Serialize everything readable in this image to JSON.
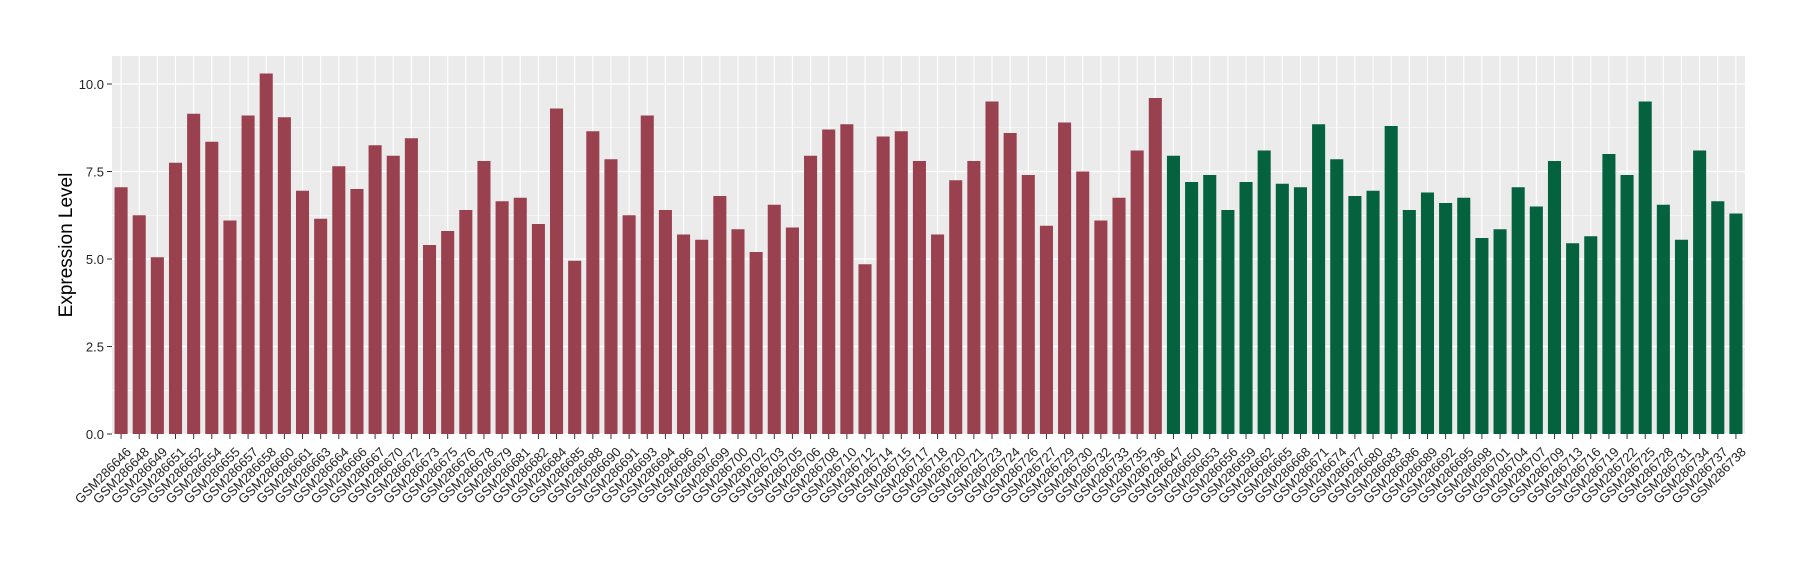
{
  "chart_data": {
    "type": "bar",
    "title": "",
    "xlabel": "",
    "ylabel": "Expression Level",
    "ylim": [
      0,
      10.8
    ],
    "yticks": [
      "0.0",
      "2.5",
      "5.0",
      "7.5",
      "10.0"
    ],
    "grid": true,
    "legend": "none",
    "colors": {
      "group_1": "#9A4150",
      "group_2": "#05623F",
      "panel": "#EBEBEB",
      "grid": "#FFFFFF"
    },
    "categories": [
      "GSM286646",
      "GSM286648",
      "GSM286649",
      "GSM286651",
      "GSM286652",
      "GSM286654",
      "GSM286655",
      "GSM286657",
      "GSM286658",
      "GSM286660",
      "GSM286661",
      "GSM286663",
      "GSM286664",
      "GSM286666",
      "GSM286667",
      "GSM286670",
      "GSM286672",
      "GSM286673",
      "GSM286675",
      "GSM286676",
      "GSM286678",
      "GSM286679",
      "GSM286681",
      "GSM286682",
      "GSM286684",
      "GSM286685",
      "GSM286688",
      "GSM286690",
      "GSM286691",
      "GSM286693",
      "GSM286694",
      "GSM286696",
      "GSM286697",
      "GSM286699",
      "GSM286700",
      "GSM286702",
      "GSM286703",
      "GSM286705",
      "GSM286706",
      "GSM286708",
      "GSM286710",
      "GSM286712",
      "GSM286714",
      "GSM286715",
      "GSM286717",
      "GSM286718",
      "GSM286720",
      "GSM286721",
      "GSM286723",
      "GSM286724",
      "GSM286726",
      "GSM286727",
      "GSM286729",
      "GSM286730",
      "GSM286732",
      "GSM286733",
      "GSM286735",
      "GSM286736",
      "GSM286647",
      "GSM286650",
      "GSM286653",
      "GSM286656",
      "GSM286659",
      "GSM286662",
      "GSM286665",
      "GSM286668",
      "GSM286671",
      "GSM286674",
      "GSM286677",
      "GSM286680",
      "GSM286683",
      "GSM286686",
      "GSM286689",
      "GSM286692",
      "GSM286695",
      "GSM286698",
      "GSM286701",
      "GSM286704",
      "GSM286707",
      "GSM286709",
      "GSM286713",
      "GSM286716",
      "GSM286719",
      "GSM286722",
      "GSM286725",
      "GSM286728",
      "GSM286731",
      "GSM286734",
      "GSM286737",
      "GSM286738"
    ],
    "values": [
      7.05,
      6.25,
      5.05,
      7.75,
      9.15,
      8.35,
      6.1,
      9.1,
      10.3,
      9.05,
      6.95,
      6.15,
      7.65,
      7.0,
      8.25,
      7.95,
      8.45,
      5.4,
      5.8,
      6.4,
      7.8,
      6.65,
      6.75,
      6.0,
      9.3,
      4.95,
      8.65,
      7.85,
      6.25,
      9.1,
      6.4,
      5.7,
      5.55,
      6.8,
      5.85,
      5.2,
      6.55,
      5.9,
      7.95,
      8.7,
      8.85,
      4.85,
      8.5,
      8.65,
      7.8,
      5.7,
      7.25,
      7.8,
      9.5,
      8.6,
      7.4,
      5.95,
      8.9,
      7.5,
      6.1,
      6.75,
      8.1,
      9.6,
      7.95,
      7.2,
      7.4,
      6.4,
      7.2,
      8.1,
      7.15,
      7.05,
      8.85,
      7.85,
      6.8,
      6.95,
      8.8,
      6.4,
      6.9,
      6.6,
      6.75,
      5.6,
      5.85,
      7.05,
      6.5,
      7.8,
      5.45,
      5.65,
      8.0,
      7.4,
      9.5,
      6.55,
      5.55,
      8.1,
      6.65,
      6.3
    ],
    "groups": [
      1,
      1,
      1,
      1,
      1,
      1,
      1,
      1,
      1,
      1,
      1,
      1,
      1,
      1,
      1,
      1,
      1,
      1,
      1,
      1,
      1,
      1,
      1,
      1,
      1,
      1,
      1,
      1,
      1,
      1,
      1,
      1,
      1,
      1,
      1,
      1,
      1,
      1,
      1,
      1,
      1,
      1,
      1,
      1,
      1,
      1,
      1,
      1,
      1,
      1,
      1,
      1,
      1,
      1,
      1,
      1,
      1,
      1,
      2,
      2,
      2,
      2,
      2,
      2,
      2,
      2,
      2,
      2,
      2,
      2,
      2,
      2,
      2,
      2,
      2,
      2,
      2,
      2,
      2,
      2,
      2,
      2,
      2,
      2,
      2,
      2,
      2,
      2,
      2,
      2
    ]
  }
}
